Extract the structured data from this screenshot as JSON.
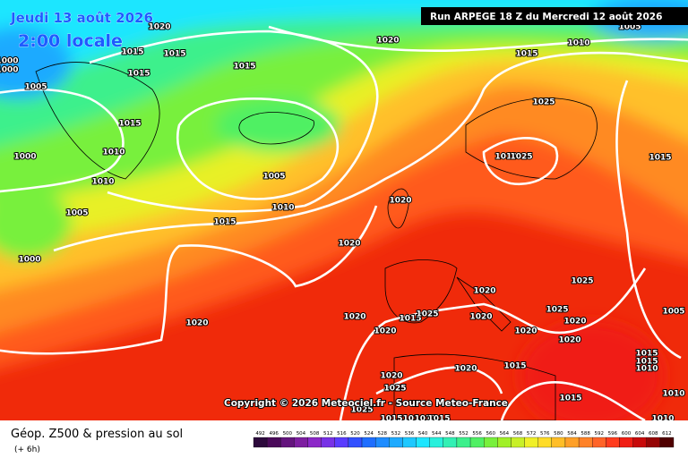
{
  "header": {
    "date": "Jeudi 13 août 2026",
    "time": "2:00 locale",
    "run": "Run ARPEGE 18 Z du Mercredi 12 août 2026"
  },
  "copyright": "Copyright © 2026 Meteociel.fr - Source Meteo-France",
  "footer": {
    "title": "Géop. Z500 & pression au sol",
    "lead": "(+ 6h)"
  },
  "isobar_labels": [
    1020,
    1020,
    1010,
    1005,
    1015,
    1000,
    1000,
    1005,
    1015,
    1015,
    1015,
    1015,
    1015,
    1010,
    1000,
    1010,
    1005,
    1005,
    1010,
    1015,
    1000,
    1020,
    1020,
    1025,
    1010,
    1025,
    1015,
    1025,
    1025,
    1020,
    1020,
    1020,
    1020,
    1015,
    1025,
    1020,
    1020,
    1020,
    1020,
    1015,
    1020,
    1020,
    1025,
    1015,
    1015,
    1015,
    1010,
    1005,
    1010,
    1010,
    1025,
    1015,
    1010,
    1011,
    1015
  ],
  "colorbar": {
    "labels": [
      492,
      496,
      500,
      504,
      508,
      512,
      516,
      520,
      524,
      528,
      532,
      536,
      540,
      544,
      548,
      552,
      556,
      560,
      564,
      568,
      572,
      576,
      580,
      584,
      588,
      592,
      596,
      600,
      604,
      608,
      612
    ],
    "colors": [
      "#2d0a3c",
      "#4b0a5a",
      "#64147d",
      "#7d1ea0",
      "#8c28c8",
      "#7832e6",
      "#5a3cff",
      "#3250ff",
      "#1e6eff",
      "#1e8cff",
      "#1eaaff",
      "#1ec8ff",
      "#1ee6ff",
      "#28f0dc",
      "#32f0b4",
      "#3cf08c",
      "#50f064",
      "#78f03c",
      "#a0f028",
      "#c8f028",
      "#f0f028",
      "#ffdc28",
      "#ffbe28",
      "#ffa028",
      "#ff8228",
      "#ff6428",
      "#ff3c1e",
      "#f01e14",
      "#c80a0a",
      "#960505",
      "#500000"
    ]
  }
}
